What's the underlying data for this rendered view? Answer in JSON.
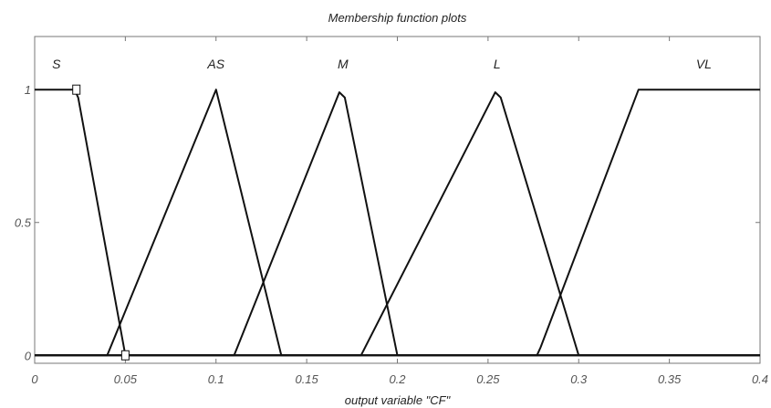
{
  "chart_data": {
    "type": "line",
    "title": "Membership function plots",
    "xlabel": "output variable \"CF\"",
    "ylabel": "",
    "xlim": [
      0,
      0.4
    ],
    "ylim": [
      -0.03,
      1.2
    ],
    "x_ticks": [
      "0",
      "0.05",
      "0.1",
      "0.15",
      "0.2",
      "0.25",
      "0.3",
      "0.35",
      "0.4"
    ],
    "y_ticks": [
      "0",
      "0.5",
      "1"
    ],
    "grid": false,
    "series": [
      {
        "name": "S",
        "label_x": 0.012,
        "x": [
          0,
          0.022,
          0.024,
          0.05,
          0.4
        ],
        "y": [
          1,
          1,
          0.97,
          0,
          0
        ]
      },
      {
        "name": "AS",
        "label_x": 0.1,
        "x": [
          0,
          0.04,
          0.1,
          0.136,
          0.4
        ],
        "y": [
          0,
          0,
          1,
          0,
          0
        ]
      },
      {
        "name": "M",
        "label_x": 0.17,
        "x": [
          0,
          0.11,
          0.168,
          0.171,
          0.2,
          0.4
        ],
        "y": [
          0,
          0,
          0.99,
          0.97,
          0,
          0
        ]
      },
      {
        "name": "L",
        "label_x": 0.255,
        "x": [
          0,
          0.18,
          0.254,
          0.257,
          0.3,
          0.4
        ],
        "y": [
          0,
          0,
          0.99,
          0.97,
          0,
          0
        ]
      },
      {
        "name": "VL",
        "label_x": 0.369,
        "x": [
          0,
          0.277,
          0.279,
          0.333,
          0.4
        ],
        "y": [
          0,
          0,
          0.03,
          1,
          1
        ]
      }
    ],
    "selected_markers": [
      {
        "x": 0.023,
        "y": 1
      },
      {
        "x": 0.05,
        "y": 0
      }
    ],
    "line_color": "#111111",
    "axis_color": "#777777"
  }
}
